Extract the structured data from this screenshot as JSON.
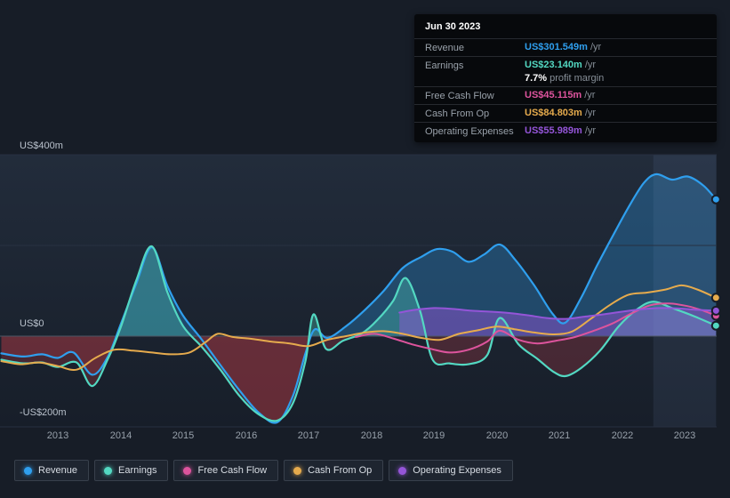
{
  "colors": {
    "background": "#171d27",
    "plot_top": "#222c3b",
    "plot_bottom": "#171e29",
    "grid": "#273041",
    "zero_line": "#4d5765",
    "highlight_band": "rgba(125,160,210,0.10)"
  },
  "tooltip": {
    "date": "Jun 30 2023",
    "rows": [
      {
        "label": "Revenue",
        "value": "US$301.549m",
        "suffix": "/yr",
        "color": "#2f9fee"
      },
      {
        "label": "Earnings",
        "value": "US$23.140m",
        "suffix": "/yr",
        "color": "#53d8c2",
        "extra_value": "7.7%",
        "extra_label": "profit margin"
      },
      {
        "label": "Free Cash Flow",
        "value": "US$45.115m",
        "suffix": "/yr",
        "color": "#dd549d"
      },
      {
        "label": "Cash From Op",
        "value": "US$84.803m",
        "suffix": "/yr",
        "color": "#e6ab4d"
      },
      {
        "label": "Operating Expenses",
        "value": "US$55.989m",
        "suffix": "/yr",
        "color": "#9455d8"
      }
    ]
  },
  "legend": {
    "items": [
      {
        "label": "Revenue",
        "color": "#2f9fee"
      },
      {
        "label": "Earnings",
        "color": "#53d8c2"
      },
      {
        "label": "Free Cash Flow",
        "color": "#dd549d"
      },
      {
        "label": "Cash From Op",
        "color": "#e6ab4d"
      },
      {
        "label": "Operating Expenses",
        "color": "#9455d8"
      }
    ]
  },
  "chart_data": {
    "type": "area",
    "title": "",
    "x_axis": {
      "ticks": [
        "2013",
        "2014",
        "2015",
        "2016",
        "2017",
        "2018",
        "2019",
        "2020",
        "2021",
        "2022",
        "2023"
      ],
      "range": [
        2012.1,
        2023.5
      ]
    },
    "y_axis": {
      "unit": "US$m",
      "range": [
        -200,
        400
      ],
      "gridlines": [
        400,
        200,
        0,
        -200
      ],
      "labels": [
        "US$400m",
        "US$0",
        "-US$200m"
      ],
      "label_values": [
        400,
        0,
        -200
      ]
    },
    "highlight_x_range": [
      2022.5,
      2023.5
    ],
    "legend_position": "bottom-left",
    "series": [
      {
        "name": "Revenue",
        "color": "#2f9fee",
        "width": 2.2,
        "fill_positive": "rgba(47,159,238,0.30)",
        "fill_negative": "rgba(200,62,72,0.24)",
        "points": [
          [
            2012.1,
            -38
          ],
          [
            2012.45,
            -45
          ],
          [
            2012.75,
            -40
          ],
          [
            2013.0,
            -48
          ],
          [
            2013.25,
            -36
          ],
          [
            2013.55,
            -85
          ],
          [
            2013.8,
            -45
          ],
          [
            2014.0,
            25
          ],
          [
            2014.25,
            115
          ],
          [
            2014.5,
            196
          ],
          [
            2014.75,
            110
          ],
          [
            2015.0,
            45
          ],
          [
            2015.3,
            -8
          ],
          [
            2015.6,
            -65
          ],
          [
            2015.9,
            -120
          ],
          [
            2016.2,
            -168
          ],
          [
            2016.5,
            -190
          ],
          [
            2016.75,
            -132
          ],
          [
            2016.95,
            -38
          ],
          [
            2017.1,
            15
          ],
          [
            2017.3,
            -4
          ],
          [
            2017.6,
            22
          ],
          [
            2017.9,
            58
          ],
          [
            2018.2,
            100
          ],
          [
            2018.5,
            150
          ],
          [
            2018.8,
            175
          ],
          [
            2019.05,
            192
          ],
          [
            2019.3,
            186
          ],
          [
            2019.55,
            164
          ],
          [
            2019.8,
            180
          ],
          [
            2020.05,
            202
          ],
          [
            2020.3,
            168
          ],
          [
            2020.6,
            112
          ],
          [
            2020.9,
            48
          ],
          [
            2021.1,
            30
          ],
          [
            2021.35,
            85
          ],
          [
            2021.6,
            155
          ],
          [
            2021.85,
            220
          ],
          [
            2022.1,
            283
          ],
          [
            2022.35,
            338
          ],
          [
            2022.55,
            357
          ],
          [
            2022.8,
            345
          ],
          [
            2023.05,
            352
          ],
          [
            2023.3,
            332
          ],
          [
            2023.5,
            301.549
          ]
        ]
      },
      {
        "name": "Earnings",
        "color": "#53d8c2",
        "width": 2.2,
        "fill_positive": "rgba(83,216,194,0.32)",
        "fill_negative": "rgba(200,62,72,0.26)",
        "points": [
          [
            2012.1,
            -52
          ],
          [
            2012.45,
            -60
          ],
          [
            2012.75,
            -58
          ],
          [
            2013.0,
            -68
          ],
          [
            2013.3,
            -58
          ],
          [
            2013.55,
            -110
          ],
          [
            2013.8,
            -50
          ],
          [
            2014.0,
            18
          ],
          [
            2014.25,
            122
          ],
          [
            2014.5,
            198
          ],
          [
            2014.75,
            96
          ],
          [
            2015.0,
            22
          ],
          [
            2015.3,
            -24
          ],
          [
            2015.6,
            -75
          ],
          [
            2015.9,
            -132
          ],
          [
            2016.2,
            -172
          ],
          [
            2016.5,
            -186
          ],
          [
            2016.75,
            -148
          ],
          [
            2016.95,
            -55
          ],
          [
            2017.08,
            48
          ],
          [
            2017.28,
            -28
          ],
          [
            2017.55,
            -10
          ],
          [
            2017.85,
            6
          ],
          [
            2018.1,
            36
          ],
          [
            2018.35,
            78
          ],
          [
            2018.55,
            128
          ],
          [
            2018.78,
            55
          ],
          [
            2018.98,
            -52
          ],
          [
            2019.25,
            -60
          ],
          [
            2019.55,
            -62
          ],
          [
            2019.85,
            -42
          ],
          [
            2020.05,
            40
          ],
          [
            2020.35,
            -18
          ],
          [
            2020.65,
            -50
          ],
          [
            2020.9,
            -78
          ],
          [
            2021.1,
            -88
          ],
          [
            2021.35,
            -70
          ],
          [
            2021.65,
            -32
          ],
          [
            2021.95,
            22
          ],
          [
            2022.25,
            60
          ],
          [
            2022.5,
            76
          ],
          [
            2022.8,
            62
          ],
          [
            2023.15,
            44
          ],
          [
            2023.5,
            23.14
          ]
        ]
      },
      {
        "name": "Free Cash Flow",
        "color": "#dd549d",
        "width": 2,
        "points": [
          [
            2017.75,
            -2
          ],
          [
            2018.05,
            5
          ],
          [
            2018.35,
            -5
          ],
          [
            2018.65,
            -18
          ],
          [
            2018.95,
            -28
          ],
          [
            2019.25,
            -36
          ],
          [
            2019.55,
            -30
          ],
          [
            2019.85,
            -12
          ],
          [
            2020.05,
            12
          ],
          [
            2020.35,
            -8
          ],
          [
            2020.65,
            -16
          ],
          [
            2020.95,
            -10
          ],
          [
            2021.25,
            -2
          ],
          [
            2021.55,
            12
          ],
          [
            2021.85,
            28
          ],
          [
            2022.15,
            50
          ],
          [
            2022.45,
            68
          ],
          [
            2022.75,
            72
          ],
          [
            2023.05,
            66
          ],
          [
            2023.3,
            56
          ],
          [
            2023.5,
            45.115
          ]
        ]
      },
      {
        "name": "Cash From Op",
        "color": "#e6ab4d",
        "width": 2,
        "points": [
          [
            2012.1,
            -55
          ],
          [
            2012.4,
            -62
          ],
          [
            2012.7,
            -58
          ],
          [
            2013.0,
            -66
          ],
          [
            2013.3,
            -74
          ],
          [
            2013.6,
            -48
          ],
          [
            2013.9,
            -30
          ],
          [
            2014.2,
            -32
          ],
          [
            2014.5,
            -36
          ],
          [
            2014.8,
            -40
          ],
          [
            2015.1,
            -36
          ],
          [
            2015.35,
            -14
          ],
          [
            2015.55,
            5
          ],
          [
            2015.8,
            -2
          ],
          [
            2016.1,
            -6
          ],
          [
            2016.4,
            -12
          ],
          [
            2016.7,
            -16
          ],
          [
            2017.0,
            -22
          ],
          [
            2017.3,
            -8
          ],
          [
            2017.6,
            0
          ],
          [
            2017.9,
            8
          ],
          [
            2018.2,
            11
          ],
          [
            2018.5,
            5
          ],
          [
            2018.8,
            -4
          ],
          [
            2019.1,
            -8
          ],
          [
            2019.4,
            5
          ],
          [
            2019.7,
            13
          ],
          [
            2020.0,
            21
          ],
          [
            2020.3,
            15
          ],
          [
            2020.6,
            8
          ],
          [
            2020.9,
            4
          ],
          [
            2021.2,
            10
          ],
          [
            2021.5,
            38
          ],
          [
            2021.8,
            68
          ],
          [
            2022.1,
            91
          ],
          [
            2022.4,
            96
          ],
          [
            2022.7,
            103
          ],
          [
            2022.95,
            112
          ],
          [
            2023.2,
            103
          ],
          [
            2023.5,
            84.803
          ]
        ]
      },
      {
        "name": "Operating Expenses",
        "color": "#9455d8",
        "width": 2,
        "fill_positive": "rgba(148,85,216,0.48)",
        "points": [
          [
            2018.45,
            52
          ],
          [
            2018.7,
            58
          ],
          [
            2019.0,
            62
          ],
          [
            2019.3,
            60
          ],
          [
            2019.6,
            56
          ],
          [
            2019.9,
            54
          ],
          [
            2020.2,
            51
          ],
          [
            2020.5,
            46
          ],
          [
            2020.8,
            40
          ],
          [
            2021.1,
            38
          ],
          [
            2021.4,
            43
          ],
          [
            2021.7,
            48
          ],
          [
            2022.0,
            54
          ],
          [
            2022.3,
            59
          ],
          [
            2022.6,
            62
          ],
          [
            2022.9,
            61
          ],
          [
            2023.2,
            58
          ],
          [
            2023.5,
            55.989
          ]
        ]
      }
    ]
  }
}
